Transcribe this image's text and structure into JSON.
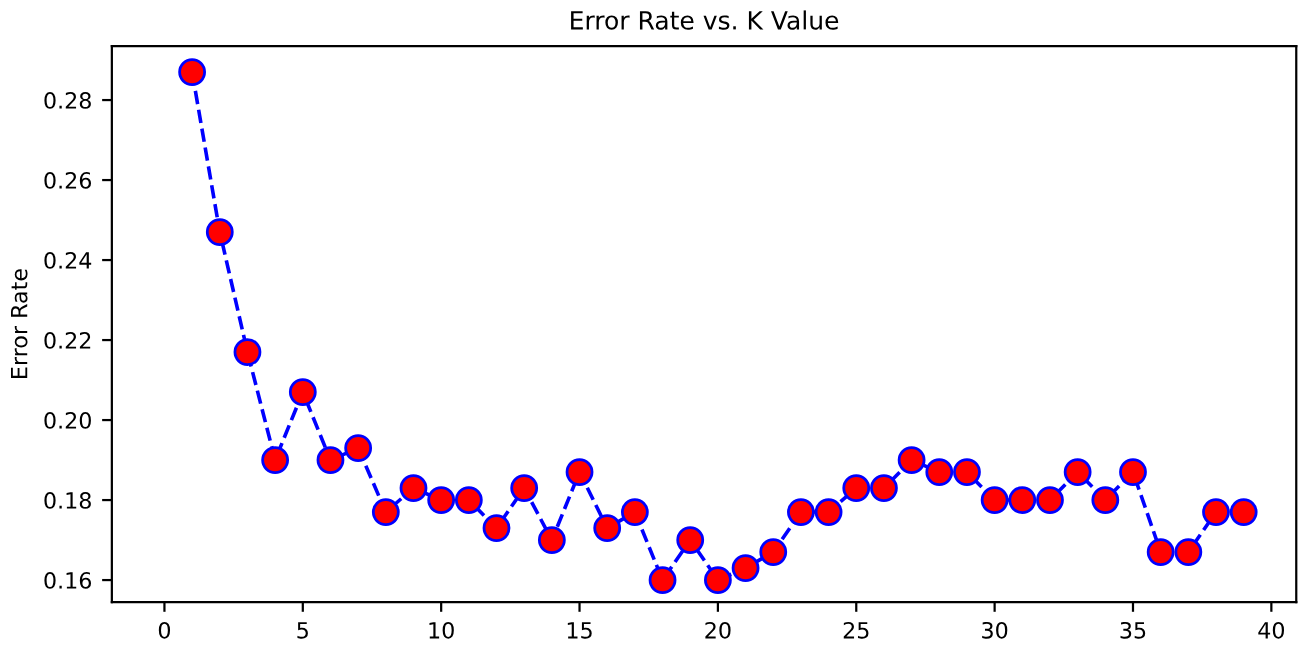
{
  "chart_data": {
    "type": "line",
    "title": "Error Rate vs. K Value",
    "ylabel": "Error Rate",
    "x": [
      1,
      2,
      3,
      4,
      5,
      6,
      7,
      8,
      9,
      10,
      11,
      12,
      13,
      14,
      15,
      16,
      17,
      18,
      19,
      20,
      21,
      22,
      23,
      24,
      25,
      26,
      27,
      28,
      29,
      30,
      31,
      32,
      33,
      34,
      35,
      36,
      37,
      38,
      39
    ],
    "series": [
      {
        "color": "#0000ff",
        "values": [
          0.287,
          0.247,
          0.217,
          0.19,
          0.207,
          0.19,
          0.193,
          0.177,
          0.183,
          0.18,
          0.18,
          0.173,
          0.183,
          0.17,
          0.187,
          0.173,
          0.177,
          0.16,
          0.17,
          0.16,
          0.163,
          0.167,
          0.177,
          0.177,
          0.183,
          0.183,
          0.19,
          0.187,
          0.187,
          0.18,
          0.18,
          0.18,
          0.187,
          0.18,
          0.187,
          0.167,
          0.167,
          0.177,
          0.177
        ]
      }
    ],
    "marker": "circle",
    "line_style": "dashed",
    "grid": false,
    "legend": false,
    "xlim": [
      -1.9,
      40.9
    ],
    "ylim": [
      0.1545,
      0.2935
    ],
    "xticks": [
      0,
      5,
      10,
      15,
      20,
      25,
      30,
      35,
      40
    ],
    "yticks": [
      {
        "value": 0.16,
        "label": "0.16"
      },
      {
        "value": 0.18,
        "label": "0.18"
      },
      {
        "value": 0.2,
        "label": "0.20"
      },
      {
        "value": 0.22,
        "label": "0.22"
      },
      {
        "value": 0.24,
        "label": "0.24"
      },
      {
        "value": 0.26,
        "label": "0.26"
      },
      {
        "value": 0.28,
        "label": "0.28"
      }
    ]
  }
}
